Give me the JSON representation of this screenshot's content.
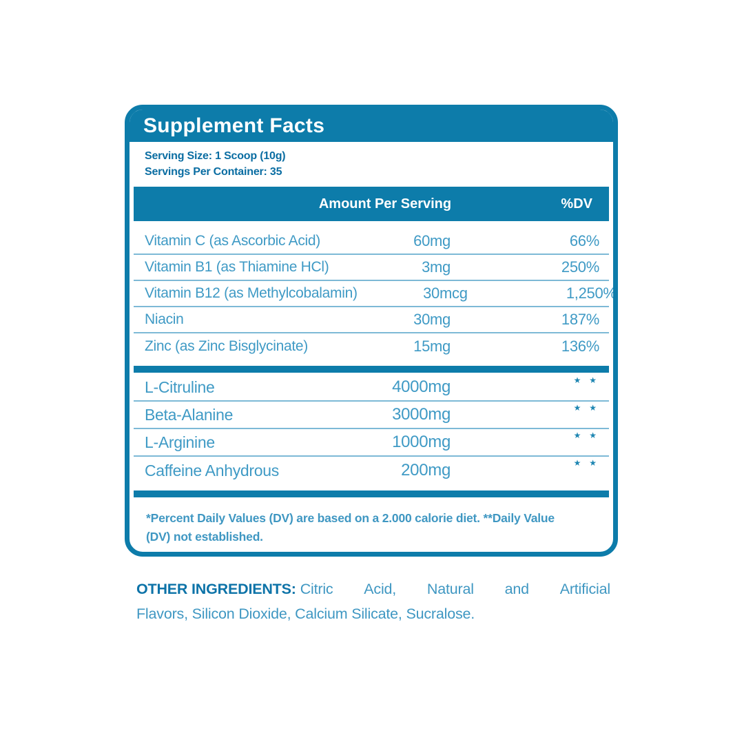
{
  "panel": {
    "title": "Supplement Facts",
    "serving_size": "Serving Size: 1 Scoop (10g)",
    "servings_per_container": "Servings Per Container: 35",
    "columns": {
      "amount": "Amount Per Serving",
      "dv": "%DV"
    },
    "section1": [
      {
        "name": "Vitamin C (as Ascorbic Acid)",
        "amount": "60mg",
        "dv": "66%"
      },
      {
        "name": "Vitamin B1 (as Thiamine HCl)",
        "amount": "3mg",
        "dv": "250%"
      },
      {
        "name": "Vitamin B12 (as Methylcobalamin)",
        "amount": "30mcg",
        "dv": "1,250%"
      },
      {
        "name": "Niacin",
        "amount": "30mg",
        "dv": "187%"
      },
      {
        "name": "Zinc (as Zinc Bisglycinate)",
        "amount": "15mg",
        "dv": "136%"
      }
    ],
    "section2": [
      {
        "name": "L-Citruline",
        "amount": "4000mg",
        "dv": "★ ★"
      },
      {
        "name": "Beta-Alanine",
        "amount": "3000mg",
        "dv": "★ ★"
      },
      {
        "name": "L-Arginine",
        "amount": "1000mg",
        "dv": "★ ★"
      },
      {
        "name": "Caffeine Anhydrous",
        "amount": "200mg",
        "dv": "★ ★"
      }
    ],
    "footnote_line1": "*Percent Daily Values (DV) are based on a 2.000 calorie diet. **Daily Value",
    "footnote_line2": "(DV) not established."
  },
  "other_ingredients": {
    "label": "OTHER INGREDIENTS:",
    "line1_words": "Citric Acid, Natural and Artificial",
    "line2": "Flavors, Silicon Dioxide, Calcium Silicate, Sucralose."
  },
  "colors": {
    "teal": "#0D7CAA",
    "dark_blue": "#0A6DA2",
    "light_blue": "#3F9AC5"
  }
}
